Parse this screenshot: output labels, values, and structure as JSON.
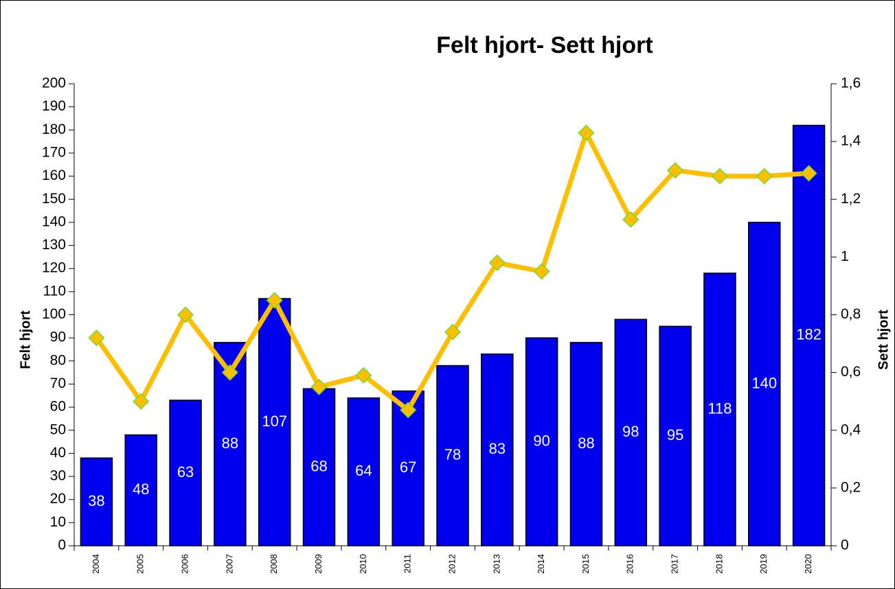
{
  "chart_data": {
    "type": "bar_line",
    "title": "Felt hjort- Sett hjort",
    "ylabel": "Felt hjort",
    "y2label": "Sett hjort",
    "categories": [
      "2004",
      "2005",
      "2006",
      "2007",
      "2008",
      "2009",
      "2010",
      "2011",
      "2012",
      "2013",
      "2014",
      "2015",
      "2016",
      "2017",
      "2018",
      "2019",
      "2020"
    ],
    "series": [
      {
        "type": "bar",
        "color": "#0000ee",
        "values": [
          38,
          48,
          63,
          88,
          107,
          68,
          64,
          67,
          78,
          83,
          90,
          88,
          98,
          95,
          118,
          140,
          182
        ]
      },
      {
        "type": "line",
        "axis": "y2",
        "color": "#ffbf00",
        "marker_color": "#ffbf00",
        "marker_edge": "#66dd33",
        "values": [
          0.72,
          0.5,
          0.8,
          0.6,
          0.85,
          0.55,
          0.59,
          0.47,
          0.74,
          0.98,
          0.95,
          1.43,
          1.13,
          1.3,
          1.28,
          1.28,
          1.29
        ]
      }
    ],
    "ylim": [
      0,
      200
    ],
    "yticks": [
      0,
      10,
      20,
      30,
      40,
      50,
      60,
      70,
      80,
      90,
      100,
      110,
      120,
      130,
      140,
      150,
      160,
      170,
      180,
      190,
      200
    ],
    "y2lim": [
      0,
      1.6
    ],
    "y2ticks": [
      0,
      {
        "value": 0.2,
        "label": "0,2"
      },
      {
        "value": 0.4,
        "label": "0,4"
      },
      {
        "value": 0.6,
        "label": "0,6"
      },
      {
        "value": 0.8,
        "label": "0,8"
      },
      1,
      {
        "value": 1.2,
        "label": "1,2"
      },
      {
        "value": 1.4,
        "label": "1,4"
      },
      {
        "value": 1.6,
        "label": "1,6"
      }
    ],
    "grid": false
  }
}
